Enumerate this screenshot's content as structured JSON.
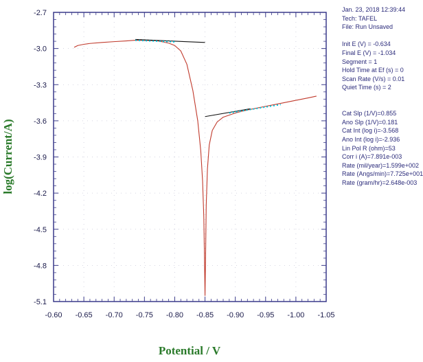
{
  "chart_data": {
    "type": "line",
    "xlabel": "Potential / V",
    "ylabel": "log(Current/A)",
    "xlim": [
      -0.6,
      -1.05
    ],
    "ylim": [
      -5.1,
      -2.7
    ],
    "x_ticks": [
      -0.6,
      -0.65,
      -0.7,
      -0.75,
      -0.8,
      -0.85,
      -0.9,
      -0.95,
      -1.0,
      -1.05
    ],
    "x_tick_labels": [
      "-0.60",
      "-0.65",
      "-0.70",
      "-0.75",
      "-0.80",
      "-0.85",
      "-0.90",
      "-0.95",
      "-1.00",
      "-1.05"
    ],
    "y_ticks": [
      -2.7,
      -3.0,
      -3.3,
      -3.6,
      -3.9,
      -4.2,
      -4.5,
      -4.8,
      -5.1
    ],
    "y_tick_labels": [
      "-2.7",
      "-3.0",
      "-3.3",
      "-3.6",
      "-3.9",
      "-4.2",
      "-4.5",
      "-4.8",
      "-5.1"
    ],
    "grid": true,
    "series": [
      {
        "color": "#c0392b",
        "points": [
          [
            -0.634,
            -2.99
          ],
          [
            -0.64,
            -2.975
          ],
          [
            -0.65,
            -2.965
          ],
          [
            -0.66,
            -2.958
          ],
          [
            -0.68,
            -2.95
          ],
          [
            -0.7,
            -2.943
          ],
          [
            -0.72,
            -2.937
          ],
          [
            -0.735,
            -2.931
          ],
          [
            -0.75,
            -2.932
          ],
          [
            -0.76,
            -2.934
          ],
          [
            -0.77,
            -2.935
          ],
          [
            -0.78,
            -2.945
          ],
          [
            -0.79,
            -2.955
          ],
          [
            -0.8,
            -2.975
          ],
          [
            -0.81,
            -3.02
          ],
          [
            -0.82,
            -3.13
          ],
          [
            -0.83,
            -3.35
          ],
          [
            -0.838,
            -3.6
          ],
          [
            -0.843,
            -3.85
          ],
          [
            -0.846,
            -4.1
          ],
          [
            -0.848,
            -4.4
          ],
          [
            -0.849,
            -4.7
          ],
          [
            -0.85,
            -5.05
          ],
          [
            -0.851,
            -4.7
          ],
          [
            -0.852,
            -4.3
          ],
          [
            -0.854,
            -4.0
          ],
          [
            -0.857,
            -3.8
          ],
          [
            -0.862,
            -3.68
          ],
          [
            -0.87,
            -3.61
          ],
          [
            -0.88,
            -3.57
          ],
          [
            -0.9,
            -3.535
          ],
          [
            -0.92,
            -3.51
          ],
          [
            -0.94,
            -3.49
          ],
          [
            -0.96,
            -3.47
          ],
          [
            -0.98,
            -3.45
          ],
          [
            -1.0,
            -3.43
          ],
          [
            -1.02,
            -3.41
          ],
          [
            -1.034,
            -3.395
          ]
        ]
      },
      {
        "color": "#111111",
        "points": [
          [
            -0.735,
            -2.925
          ],
          [
            -0.85,
            -2.95
          ]
        ]
      },
      {
        "color": "#111111",
        "points": [
          [
            -0.85,
            -3.565
          ],
          [
            -0.925,
            -3.5
          ]
        ]
      },
      {
        "color": "#00c8e0",
        "dashed": true,
        "points": [
          [
            -0.735,
            -2.932
          ],
          [
            -0.8,
            -2.945
          ]
        ]
      },
      {
        "color": "#00c8e0",
        "dashed": true,
        "points": [
          [
            -0.89,
            -3.535
          ],
          [
            -0.975,
            -3.465
          ]
        ]
      }
    ]
  },
  "info": {
    "lines": [
      "Jan. 23, 2018   12:39:44",
      "Tech: TAFEL",
      "File: Run Unsaved",
      "",
      "Init E (V) = -0.634",
      "Final E (V) = -1.034",
      "Segment = 1",
      "Hold Time at Ef (s) = 0",
      "Scan Rate (V/s) = 0.01",
      "Quiet Time (s) = 2",
      "",
      "",
      "Cat Slp (1/V)=0.855",
      "Ano Slp (1/V)=0.181",
      "Cat Int (log i)=-3.568",
      "Ano Int (log i)=-2.936",
      "Lin Pol R (ohm)=53",
      "Corr i (A)=7.891e-003",
      "Rate (mil/year)=1.599e+002",
      "Rate (Angs/min)=7.725e+001",
      "Rate (gram/hr)=2.648e-003"
    ]
  }
}
